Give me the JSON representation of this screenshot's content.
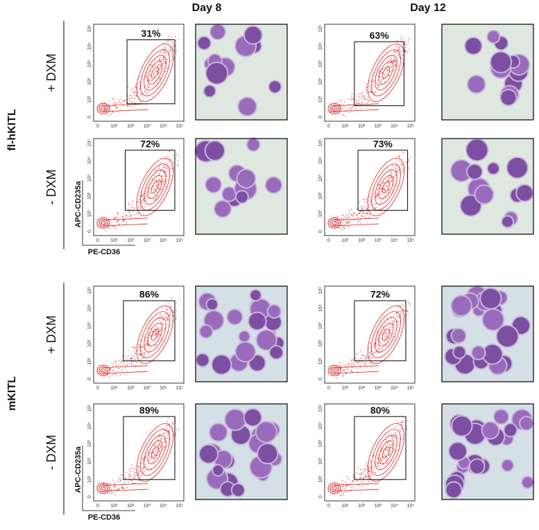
{
  "columns": [
    "Day 8",
    "Day 12"
  ],
  "groups": [
    {
      "label": "fl-hKITL",
      "rows": [
        {
          "label": "+ DXM",
          "gates": [
            "31%",
            "63%"
          ]
        },
        {
          "label": "- DXM",
          "gates": [
            "72%",
            "73%"
          ]
        }
      ]
    },
    {
      "label": "mKITL",
      "rows": [
        {
          "label": "+ DXM",
          "gates": [
            "86%",
            "72%"
          ]
        },
        {
          "label": "- DXM",
          "gates": [
            "89%",
            "80%"
          ]
        }
      ]
    }
  ],
  "axes": {
    "y_label": "APC-CD235a",
    "x_label": "PE-CD36",
    "ticks": [
      "0",
      "10¹",
      "10²",
      "10³",
      "10⁴",
      "10⁵"
    ]
  }
}
